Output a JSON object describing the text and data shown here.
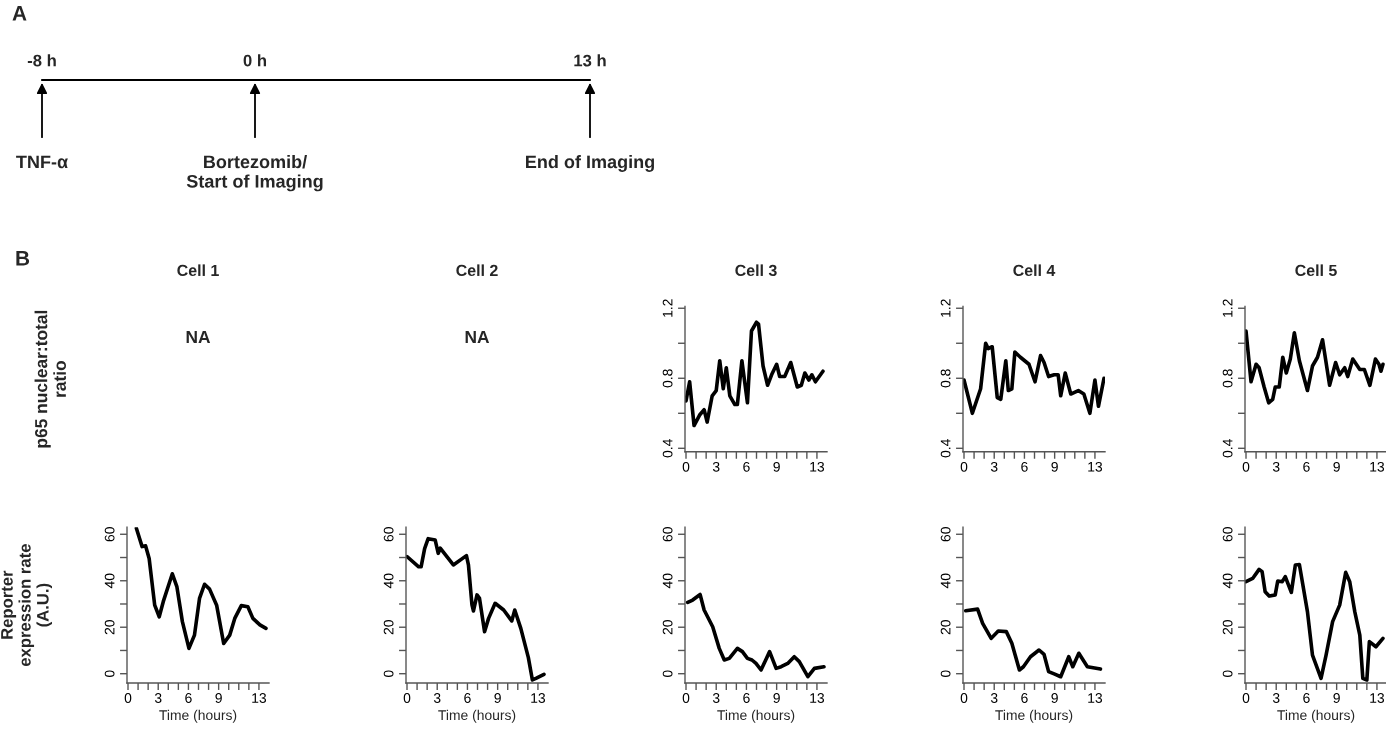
{
  "chart_data": [
    {
      "type": "other",
      "title": "A",
      "annotations": [
        "-8 h",
        "0 h",
        "13 h",
        "TNF-α",
        "Bortezomib/\nStart of Imaging",
        "End of Imaging"
      ]
    },
    {
      "type": "other",
      "title": "Cell 1",
      "ylabel": "p65 nuclear:total\nratio",
      "annotations": [
        "B",
        "NA"
      ]
    },
    {
      "type": "other",
      "title": "Cell 2",
      "annotations": [
        "NA"
      ]
    },
    {
      "type": "line",
      "title": "Cell 3",
      "color": "#000000",
      "xlim": [
        -0.1,
        14
      ],
      "ylim": [
        0.38,
        1.21
      ],
      "xticks": [
        0,
        {
          "value": 1,
          "label": null
        },
        {
          "value": 2,
          "label": null
        },
        3,
        {
          "value": 4,
          "label": null
        },
        {
          "value": 5,
          "label": null
        },
        6,
        {
          "value": 7,
          "label": null
        },
        {
          "value": 8,
          "label": null
        },
        9,
        {
          "value": 10,
          "label": null
        },
        {
          "value": 11,
          "label": null
        },
        {
          "value": 12,
          "label": null
        },
        13
      ],
      "yticks": [
        0.4,
        {
          "value": 0.6,
          "label": null
        },
        0.8,
        {
          "value": 1.0,
          "label": null
        },
        1.2
      ],
      "x": [
        0,
        0.36,
        0.8,
        1.35,
        1.8,
        2.1,
        2.6,
        3.0,
        3.35,
        3.7,
        4.0,
        4.35,
        4.85,
        5.1,
        5.55,
        6.1,
        6.5,
        7.0,
        7.2,
        7.65,
        8.1,
        8.5,
        9.0,
        9.3,
        9.8,
        10.4,
        11.05,
        11.45,
        11.8,
        12.2,
        12.5,
        12.85,
        13.6
      ],
      "values": [
        0.67,
        0.78,
        0.53,
        0.59,
        0.62,
        0.55,
        0.7,
        0.73,
        0.9,
        0.74,
        0.86,
        0.7,
        0.65,
        0.65,
        0.9,
        0.66,
        1.07,
        1.12,
        1.11,
        0.87,
        0.76,
        0.82,
        0.88,
        0.81,
        0.81,
        0.89,
        0.75,
        0.76,
        0.83,
        0.79,
        0.82,
        0.78,
        0.84
      ]
    },
    {
      "type": "line",
      "title": "Cell 4",
      "color": "#000000",
      "xlim": [
        -0.1,
        14
      ],
      "ylim": [
        0.38,
        1.21
      ],
      "xticks": [
        0,
        {
          "value": 1,
          "label": null
        },
        {
          "value": 2,
          "label": null
        },
        3,
        {
          "value": 4,
          "label": null
        },
        {
          "value": 5,
          "label": null
        },
        6,
        {
          "value": 7,
          "label": null
        },
        {
          "value": 8,
          "label": null
        },
        9,
        {
          "value": 10,
          "label": null
        },
        {
          "value": 11,
          "label": null
        },
        {
          "value": 12,
          "label": null
        },
        13
      ],
      "yticks": [
        0.4,
        {
          "value": 0.6,
          "label": null
        },
        0.8,
        {
          "value": 1.0,
          "label": null
        },
        1.2
      ],
      "x": [
        0,
        0.83,
        1.65,
        2.15,
        2.4,
        2.8,
        3.3,
        3.65,
        4.15,
        4.4,
        4.75,
        5.05,
        5.6,
        6.45,
        7.05,
        7.6,
        7.95,
        8.4,
        8.95,
        9.35,
        9.6,
        10.05,
        10.6,
        11.35,
        11.9,
        12.5,
        13.0,
        13.35,
        13.9
      ],
      "values": [
        0.79,
        0.6,
        0.74,
        1.0,
        0.97,
        0.98,
        0.69,
        0.68,
        0.9,
        0.73,
        0.74,
        0.95,
        0.92,
        0.88,
        0.78,
        0.93,
        0.89,
        0.81,
        0.82,
        0.82,
        0.7,
        0.83,
        0.71,
        0.73,
        0.71,
        0.6,
        0.79,
        0.64,
        0.8
      ]
    },
    {
      "type": "line",
      "title": "Cell 5",
      "color": "#000000",
      "xlim": [
        -0.1,
        14
      ],
      "ylim": [
        0.38,
        1.21
      ],
      "xticks": [
        0,
        {
          "value": 1,
          "label": null
        },
        {
          "value": 2,
          "label": null
        },
        3,
        {
          "value": 4,
          "label": null
        },
        {
          "value": 5,
          "label": null
        },
        6,
        {
          "value": 7,
          "label": null
        },
        {
          "value": 8,
          "label": null
        },
        9,
        {
          "value": 10,
          "label": null
        },
        {
          "value": 11,
          "label": null
        },
        {
          "value": 12,
          "label": null
        },
        13
      ],
      "yticks": [
        0.4,
        {
          "value": 0.6,
          "label": null
        },
        0.8,
        {
          "value": 1.0,
          "label": null
        },
        1.2
      ],
      "x": [
        0,
        0.5,
        1.0,
        1.3,
        1.8,
        2.25,
        2.65,
        2.9,
        3.3,
        3.65,
        4.0,
        4.4,
        4.8,
        5.3,
        6.1,
        6.6,
        7.1,
        7.6,
        8.3,
        8.9,
        9.3,
        9.8,
        10.1,
        10.6,
        11.3,
        11.75,
        12.3,
        12.85,
        13.2,
        13.4,
        13.6
      ],
      "values": [
        1.07,
        0.78,
        0.88,
        0.86,
        0.75,
        0.66,
        0.68,
        0.75,
        0.75,
        0.92,
        0.83,
        0.91,
        1.06,
        0.9,
        0.73,
        0.87,
        0.92,
        1.02,
        0.76,
        0.89,
        0.82,
        0.86,
        0.81,
        0.91,
        0.85,
        0.85,
        0.76,
        0.91,
        0.88,
        0.84,
        0.88
      ]
    },
    {
      "type": "line",
      "xlabel": "Time (hours)",
      "ylabel": "Reporter\nexpression rate\n(A.U.)",
      "color": "#000000",
      "xlim": [
        -0.1,
        14
      ],
      "ylim": [
        -4,
        63
      ],
      "xticks": [
        0,
        {
          "value": 1,
          "label": null
        },
        {
          "value": 2,
          "label": null
        },
        3,
        {
          "value": 4,
          "label": null
        },
        {
          "value": 5,
          "label": null
        },
        6,
        {
          "value": 7,
          "label": null
        },
        {
          "value": 8,
          "label": null
        },
        9,
        {
          "value": 10,
          "label": null
        },
        {
          "value": 11,
          "label": null
        },
        {
          "value": 12,
          "label": null
        },
        13
      ],
      "yticks": [
        0,
        {
          "value": 10,
          "label": null
        },
        20,
        {
          "value": 30,
          "label": null
        },
        40,
        {
          "value": 50,
          "label": null
        },
        60
      ],
      "x": [
        0.83,
        1.4,
        1.75,
        2.1,
        2.65,
        3.1,
        3.5,
        4.4,
        4.85,
        5.4,
        6.05,
        6.6,
        7.1,
        7.6,
        8.1,
        8.8,
        9.5,
        10.1,
        10.6,
        11.25,
        11.9,
        12.4,
        13.1,
        13.7
      ],
      "values": [
        62.6,
        54.7,
        55,
        49.6,
        29.5,
        24.5,
        31,
        43,
        37.5,
        22.4,
        10.9,
        16.6,
        32.4,
        38.5,
        36.4,
        29.5,
        13,
        16.6,
        23.8,
        29.3,
        28.8,
        23.8,
        21,
        19.5
      ]
    },
    {
      "type": "line",
      "xlabel": "Time (hours)",
      "color": "#000000",
      "xlim": [
        -0.1,
        14
      ],
      "ylim": [
        -4,
        63
      ],
      "xticks": [
        0,
        {
          "value": 1,
          "label": null
        },
        {
          "value": 2,
          "label": null
        },
        3,
        {
          "value": 4,
          "label": null
        },
        {
          "value": 5,
          "label": null
        },
        6,
        {
          "value": 7,
          "label": null
        },
        {
          "value": 8,
          "label": null
        },
        9,
        {
          "value": 10,
          "label": null
        },
        {
          "value": 11,
          "label": null
        },
        {
          "value": 12,
          "label": null
        },
        13
      ],
      "yticks": [
        0,
        {
          "value": 10,
          "label": null
        },
        20,
        {
          "value": 30,
          "label": null
        },
        40,
        {
          "value": 50,
          "label": null
        },
        60
      ],
      "x": [
        0,
        1.16,
        1.4,
        1.75,
        2.1,
        2.8,
        3.1,
        3.3,
        4.6,
        5.9,
        6.1,
        6.45,
        6.6,
        6.95,
        7.2,
        7.7,
        8.1,
        8.75,
        9.6,
        10.4,
        10.7,
        11.3,
        12.05,
        12.45,
        12.8,
        13.6
      ],
      "values": [
        50.4,
        46,
        46,
        53.8,
        58.1,
        57.5,
        51.8,
        54,
        46.8,
        50.8,
        46.8,
        29.6,
        27,
        33.9,
        32.4,
        18.1,
        23.8,
        30.3,
        27.4,
        22.7,
        27.4,
        19.5,
        6.9,
        -2.7,
        -2,
        -0.3
      ]
    },
    {
      "type": "line",
      "xlabel": "Time (hours)",
      "color": "#000000",
      "xlim": [
        -0.1,
        14
      ],
      "ylim": [
        -4,
        63
      ],
      "xticks": [
        0,
        {
          "value": 1,
          "label": null
        },
        {
          "value": 2,
          "label": null
        },
        3,
        {
          "value": 4,
          "label": null
        },
        {
          "value": 5,
          "label": null
        },
        6,
        {
          "value": 7,
          "label": null
        },
        {
          "value": 8,
          "label": null
        },
        9,
        {
          "value": 10,
          "label": null
        },
        {
          "value": 11,
          "label": null
        },
        {
          "value": 12,
          "label": null
        },
        13
      ],
      "yticks": [
        0,
        {
          "value": 10,
          "label": null
        },
        20,
        {
          "value": 30,
          "label": null
        },
        40,
        {
          "value": 50,
          "label": null
        },
        60
      ],
      "x": [
        0.17,
        0.66,
        1.4,
        1.8,
        2.65,
        3.3,
        3.8,
        4.3,
        5.1,
        5.6,
        6.1,
        6.55,
        6.95,
        7.45,
        8.3,
        8.95,
        9.45,
        10.1,
        10.75,
        11.25,
        12.1,
        12.75,
        13.7
      ],
      "values": [
        30.7,
        31.7,
        34.1,
        27.4,
        20.2,
        10.9,
        5.9,
        6.6,
        10.9,
        9.5,
        6.6,
        5.9,
        4.4,
        1.6,
        9.5,
        2.3,
        3,
        4.4,
        7.3,
        5.2,
        -1.3,
        2.3,
        3
      ]
    },
    {
      "type": "line",
      "xlabel": "Time (hours)",
      "color": "#000000",
      "xlim": [
        -0.1,
        14
      ],
      "ylim": [
        -4,
        63
      ],
      "xticks": [
        0,
        {
          "value": 1,
          "label": null
        },
        {
          "value": 2,
          "label": null
        },
        3,
        {
          "value": 4,
          "label": null
        },
        {
          "value": 5,
          "label": null
        },
        6,
        {
          "value": 7,
          "label": null
        },
        {
          "value": 8,
          "label": null
        },
        9,
        {
          "value": 10,
          "label": null
        },
        {
          "value": 11,
          "label": null
        },
        {
          "value": 12,
          "label": null
        },
        13
      ],
      "yticks": [
        0,
        {
          "value": 10,
          "label": null
        },
        20,
        {
          "value": 30,
          "label": null
        },
        40,
        {
          "value": 50,
          "label": null
        },
        60
      ],
      "x": [
        0.17,
        1.35,
        1.85,
        2.7,
        3.4,
        4.2,
        4.75,
        5.5,
        5.9,
        6.6,
        7.45,
        7.95,
        8.4,
        8.95,
        9.6,
        10.4,
        10.8,
        11.4,
        12.25,
        13.55
      ],
      "values": [
        27.1,
        27.8,
        21.7,
        15.2,
        18.4,
        18.1,
        13.1,
        1.6,
        3,
        7.3,
        10.2,
        8.3,
        0.9,
        -0.1,
        -1.3,
        7.3,
        3,
        8.8,
        3,
        2
      ]
    },
    {
      "type": "line",
      "xlabel": "Time (hours)",
      "color": "#000000",
      "xlim": [
        -0.1,
        14
      ],
      "ylim": [
        -4,
        63
      ],
      "xticks": [
        0,
        {
          "value": 1,
          "label": null
        },
        {
          "value": 2,
          "label": null
        },
        3,
        {
          "value": 4,
          "label": null
        },
        {
          "value": 5,
          "label": null
        },
        6,
        {
          "value": 7,
          "label": null
        },
        {
          "value": 8,
          "label": null
        },
        9,
        {
          "value": 10,
          "label": null
        },
        {
          "value": 11,
          "label": null
        },
        {
          "value": 12,
          "label": null
        },
        13
      ],
      "yticks": [
        0,
        {
          "value": 10,
          "label": null
        },
        20,
        {
          "value": 30,
          "label": null
        },
        40,
        {
          "value": 50,
          "label": null
        },
        60
      ],
      "x": [
        0,
        0.66,
        1.3,
        1.6,
        1.9,
        2.3,
        2.9,
        3.15,
        3.6,
        3.9,
        4.5,
        4.9,
        5.3,
        6.1,
        6.6,
        7.45,
        7.95,
        8.6,
        9.3,
        9.9,
        10.3,
        10.8,
        11.3,
        11.6,
        12,
        12.25,
        12.9,
        13.6
      ],
      "values": [
        39.6,
        41,
        44.9,
        43.9,
        35.3,
        33.4,
        33.9,
        39.9,
        39.6,
        41.8,
        35,
        46.8,
        47,
        26.7,
        8,
        -2,
        8,
        22.4,
        29.5,
        43.6,
        39.6,
        26.7,
        16.6,
        -2,
        -2.7,
        13.8,
        11.6,
        15.2
      ]
    }
  ]
}
